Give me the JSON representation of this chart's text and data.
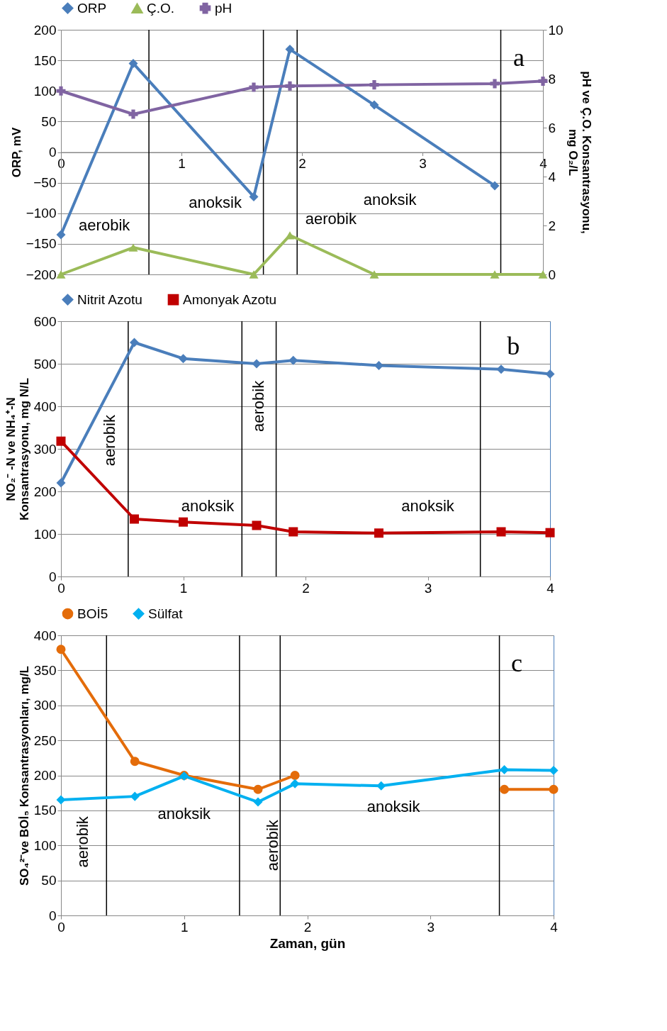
{
  "chart_data": [
    {
      "type": "line",
      "ylabel": "ORP, mV",
      "y2label": "pH ve Ç.O. Konsantrasyonu,\nmg O₂/L",
      "xlim": [
        0,
        4
      ],
      "xticks": [
        0,
        1,
        2,
        3,
        4
      ],
      "ylim": [
        -200,
        200
      ],
      "yticks": [
        -200,
        -150,
        -100,
        -50,
        0,
        50,
        100,
        150,
        200
      ],
      "y2lim": [
        0,
        10
      ],
      "y2ticks": [
        0,
        2,
        4,
        6,
        8,
        10
      ],
      "grid": "y",
      "legend": "top",
      "series": [
        {
          "name": "ORP",
          "color": "#4a7ebb",
          "marker": "diamond",
          "x": [
            0,
            0.6,
            1.6,
            1.9,
            2.6,
            3.6
          ],
          "values": [
            -135,
            145,
            -73,
            168,
            77,
            -55
          ]
        },
        {
          "name": "Ç.O.",
          "color": "#9bbb59",
          "marker": "triangle",
          "axis": "y2",
          "x": [
            0,
            0.6,
            1.6,
            1.9,
            2.6,
            3.6,
            4
          ],
          "values": [
            0,
            1.1,
            0,
            1.6,
            0,
            0,
            0
          ]
        },
        {
          "name": "pH",
          "color": "#8064a2",
          "marker": "cross",
          "axis": "y2",
          "x": [
            0,
            0.6,
            1.6,
            1.9,
            2.6,
            3.6,
            4
          ],
          "values": [
            7.5,
            6.55,
            7.65,
            7.7,
            7.75,
            7.8,
            7.9
          ]
        }
      ],
      "ref_lines": [
        {
          "axis": "x",
          "value": 0.73
        },
        {
          "axis": "x",
          "value": 1.68
        },
        {
          "axis": "x",
          "value": 1.96
        },
        {
          "axis": "x",
          "value": 3.65
        }
      ],
      "annotations": [
        "aerobik",
        "anoksik",
        "aerobik",
        "anoksik",
        "a"
      ]
    },
    {
      "type": "line",
      "ylabel": "NO₂⁻ -N ve NH₄⁺-N\nKonsantrasyonu, mg N/L",
      "xlim": [
        0,
        4
      ],
      "xticks": [
        0,
        1,
        2,
        3,
        4
      ],
      "ylim": [
        0,
        600
      ],
      "yticks": [
        0,
        100,
        200,
        300,
        400,
        500,
        600
      ],
      "grid": "y",
      "legend": "top",
      "series": [
        {
          "name": "Nitrit Azotu",
          "color": "#4a7ebb",
          "marker": "diamond",
          "x": [
            0,
            0.6,
            1,
            1.6,
            1.9,
            2.6,
            3.6,
            4
          ],
          "values": [
            220,
            550,
            512,
            500,
            508,
            496,
            487,
            476
          ]
        },
        {
          "name": "Amonyak Azotu",
          "color": "#c00000",
          "marker": "square",
          "x": [
            0,
            0.6,
            1,
            1.6,
            1.9,
            2.6,
            3.6,
            4
          ],
          "values": [
            318,
            135,
            128,
            120,
            105,
            102,
            105,
            103
          ]
        }
      ],
      "ref_lines": [
        {
          "axis": "x",
          "value": 0.55
        },
        {
          "axis": "x",
          "value": 1.48
        },
        {
          "axis": "x",
          "value": 1.76
        },
        {
          "axis": "x",
          "value": 3.43
        }
      ],
      "annotations": [
        "aerobik",
        "anoksik",
        "aerobik",
        "anoksik",
        "b"
      ]
    },
    {
      "type": "line",
      "xlabel": "Zaman, gün",
      "ylabel": "SO₄²⁻ve BOİ₅  Konsantrasyonları, mg/L",
      "xlim": [
        0,
        4
      ],
      "xticks": [
        0,
        1,
        2,
        3,
        4
      ],
      "ylim": [
        0,
        400
      ],
      "yticks": [
        0,
        50,
        100,
        150,
        200,
        250,
        300,
        350,
        400
      ],
      "grid": "y",
      "legend": "top",
      "series": [
        {
          "name": "BOİ5",
          "color": "#e46c0a",
          "marker": "circle",
          "x": [
            0,
            0.6,
            1,
            1.6,
            1.9,
            2.6,
            3.6,
            4
          ],
          "values": [
            380,
            220,
            200,
            180,
            200,
            null,
            180,
            180
          ]
        },
        {
          "name": "Sülfat",
          "color": "#00b0f0",
          "marker": "diamond",
          "x": [
            0,
            0.6,
            1,
            1.6,
            1.9,
            2.6,
            3.6,
            4
          ],
          "values": [
            165,
            170,
            199,
            162,
            188,
            185,
            208,
            207
          ]
        }
      ],
      "ref_lines": [
        {
          "axis": "x",
          "value": 0.37
        },
        {
          "axis": "x",
          "value": 1.45
        },
        {
          "axis": "x",
          "value": 1.78
        },
        {
          "axis": "x",
          "value": 3.56
        }
      ],
      "annotations": [
        "aerobik",
        "anoksik",
        "aerobik",
        "anoksik",
        "c"
      ]
    }
  ]
}
